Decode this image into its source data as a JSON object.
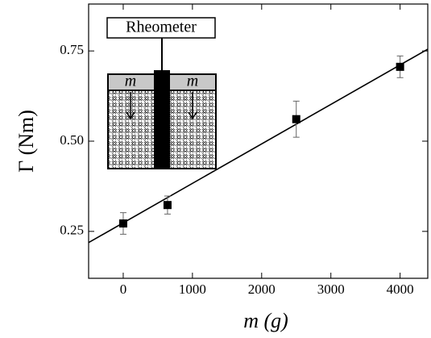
{
  "chart_data": {
    "type": "scatter",
    "x_label": "m (g)",
    "y_label": "Γ (Nm)",
    "x": [
      0,
      640,
      2500,
      4000
    ],
    "values": [
      0.272,
      0.323,
      0.561,
      0.706
    ],
    "errors": [
      0.03,
      0.025,
      0.05,
      0.03
    ],
    "color": "#000000",
    "fit": {
      "x": [
        -500,
        4400
      ],
      "y": [
        0.219,
        0.755
      ]
    },
    "xlim": [
      -500,
      4400
    ],
    "xticks": [
      0,
      1000,
      2000,
      3000,
      4000
    ],
    "ylim": [
      0.12,
      0.88
    ],
    "yticks": [
      0.25,
      {
        "value": 0.5,
        "label": "0.50"
      },
      0.75
    ],
    "inset": {
      "label": "Rheometer",
      "weights": [
        "m",
        "m"
      ]
    }
  }
}
